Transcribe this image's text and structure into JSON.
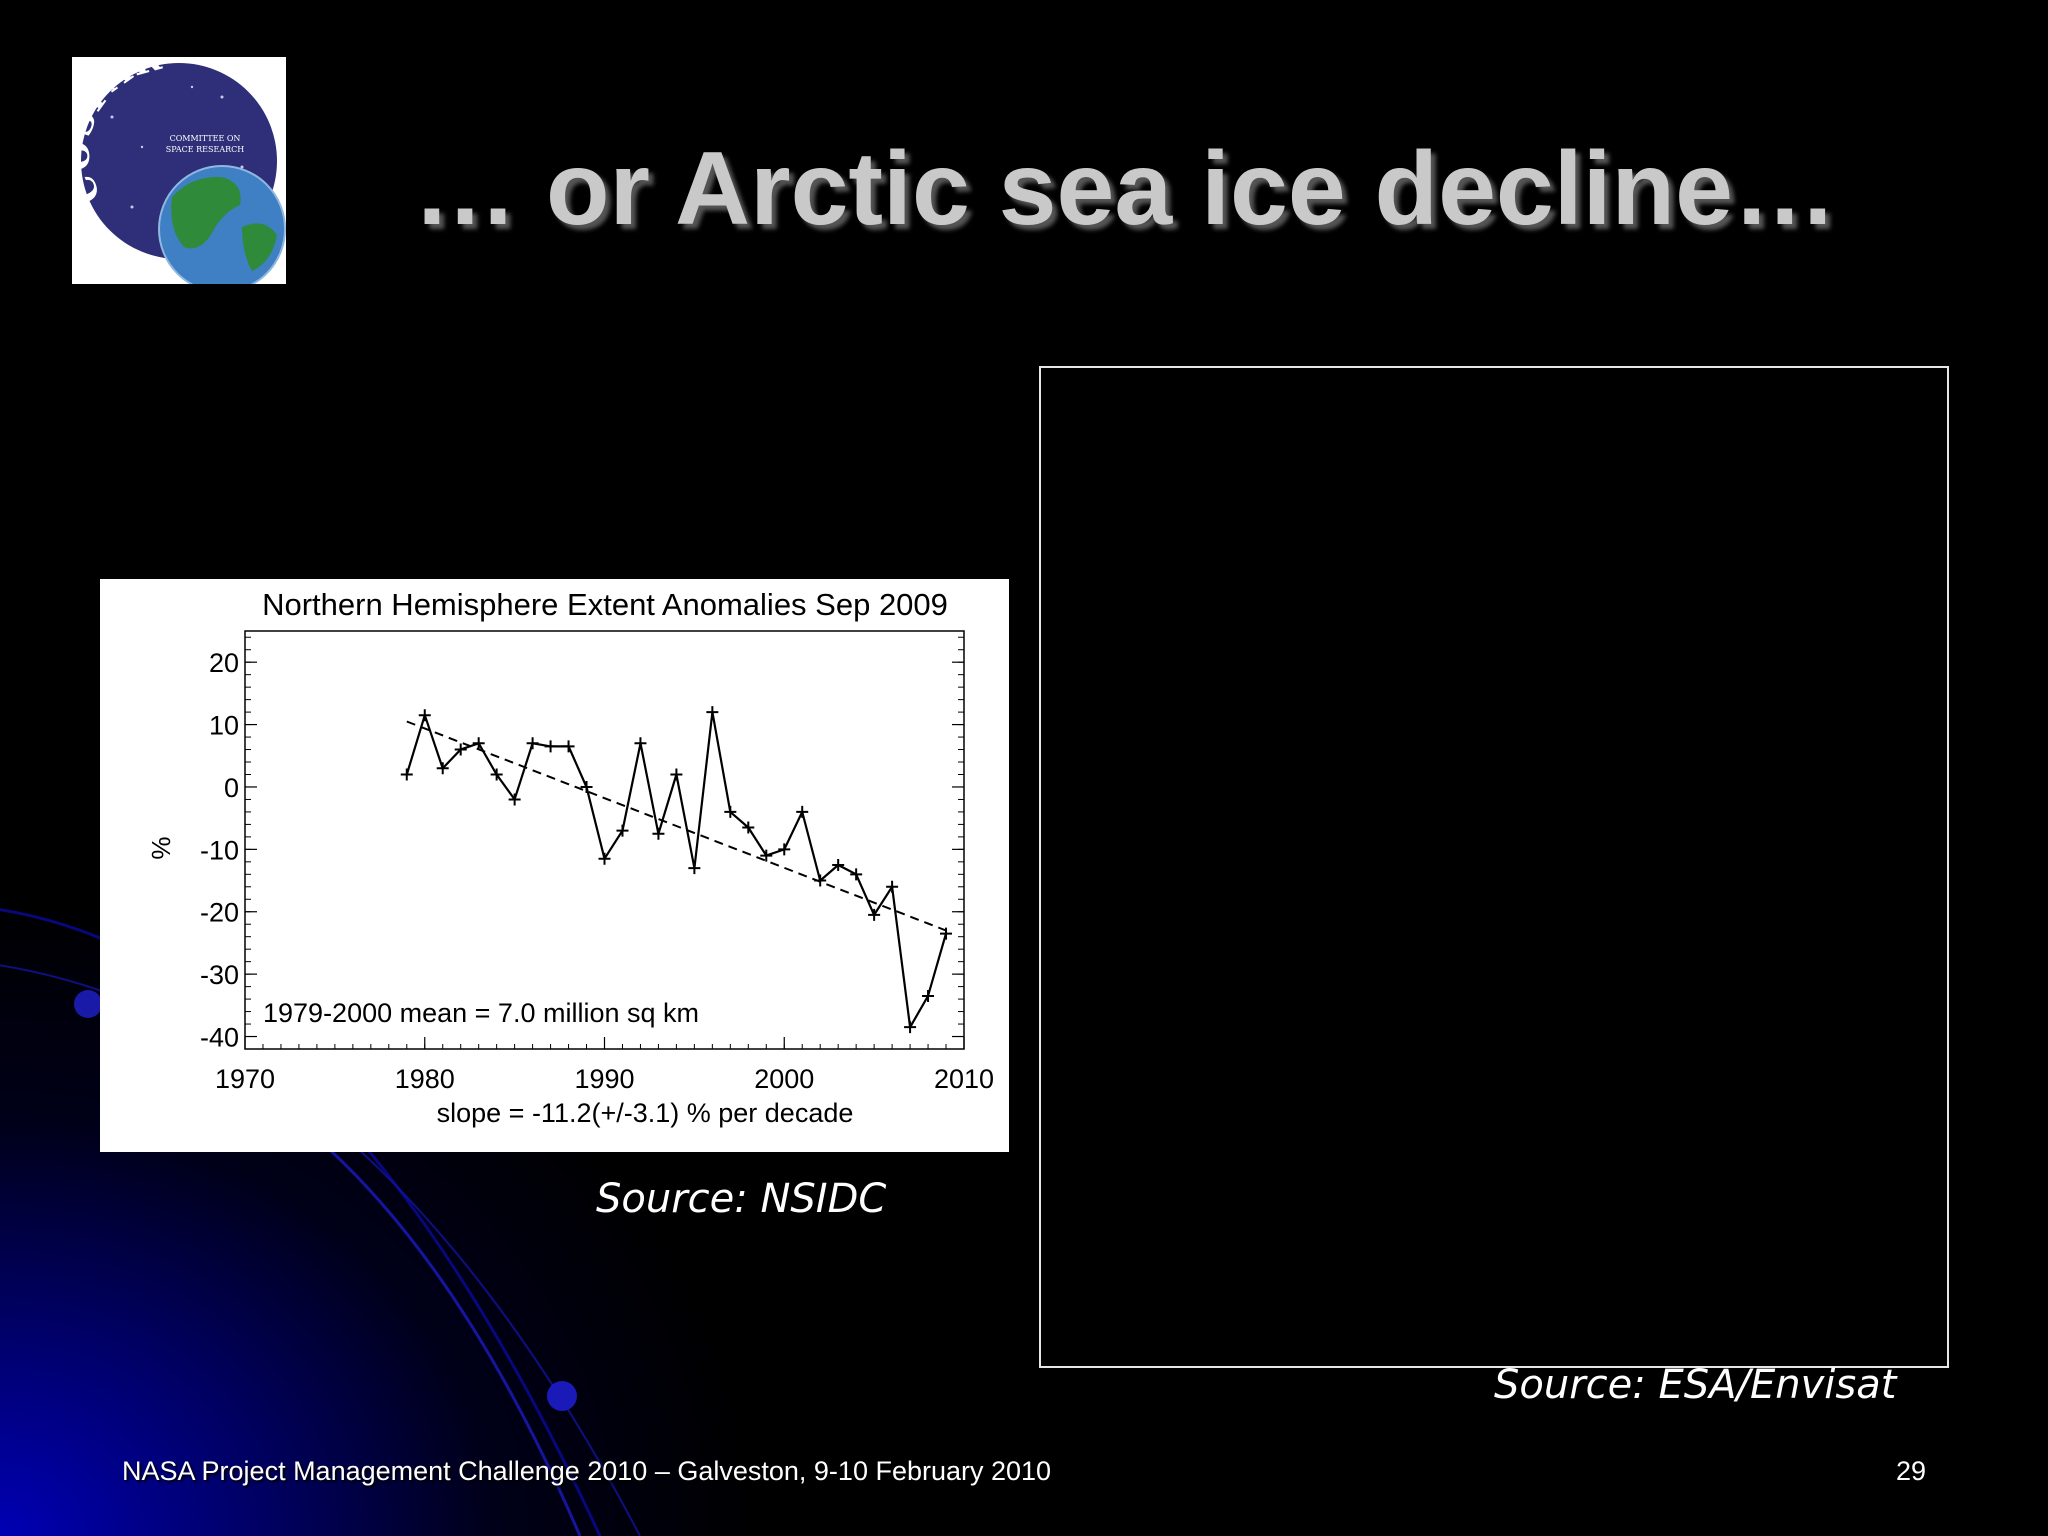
{
  "slide": {
    "title": "… or Arctic sea ice decline…",
    "footer": "NASA Project Management Challenge 2010 – Galveston, 9-10 February 2010",
    "page_number": "29"
  },
  "logo": {
    "text": "COSPAR",
    "subtitle_line1": "COMMITTEE ON",
    "subtitle_line2": "SPACE RESEARCH",
    "colors": {
      "disc": "#2e2f78",
      "ocean": "#3f7fc4",
      "land": "#2f8a3a"
    }
  },
  "sources": {
    "left": "Source: NSIDC",
    "right": "Source: ESA/Envisat"
  },
  "chart_data": {
    "type": "line",
    "title": "Northern Hemisphere Extent Anomalies Sep 2009",
    "xlabel": "",
    "ylabel": "%",
    "xlim": [
      1970,
      2010
    ],
    "ylim": [
      -42,
      25
    ],
    "x_ticks": [
      1970,
      1980,
      1990,
      2000,
      2010
    ],
    "y_ticks": [
      20,
      10,
      0,
      -10,
      -20,
      -30,
      -40
    ],
    "grid": false,
    "annotation_mean": "1979-2000 mean =   7.0 million sq km",
    "annotation_slope": "slope = -11.2(+/-3.1) % per decade",
    "series": [
      {
        "style": "solid-with-plus-markers",
        "x": [
          1979,
          1980,
          1981,
          1982,
          1983,
          1984,
          1985,
          1986,
          1987,
          1988,
          1989,
          1990,
          1991,
          1992,
          1993,
          1994,
          1995,
          1996,
          1997,
          1998,
          1999,
          2000,
          2001,
          2002,
          2003,
          2004,
          2005,
          2006,
          2007,
          2008,
          2009
        ],
        "y": [
          2,
          11.5,
          3,
          6,
          7,
          2,
          -2,
          7,
          6.5,
          6.5,
          0,
          -11.5,
          -7,
          7,
          -7.5,
          2,
          -13,
          12,
          -4,
          -6.5,
          -11,
          -10,
          -4,
          -15,
          -12.5,
          -14,
          -20.5,
          -16,
          -38.5,
          -33.5,
          -23.5
        ]
      },
      {
        "style": "dashed-trend",
        "x": [
          1979,
          2009
        ],
        "y": [
          10.5,
          -23
        ]
      }
    ],
    "colors": {
      "line": "#000000",
      "background": "#ffffff"
    }
  }
}
